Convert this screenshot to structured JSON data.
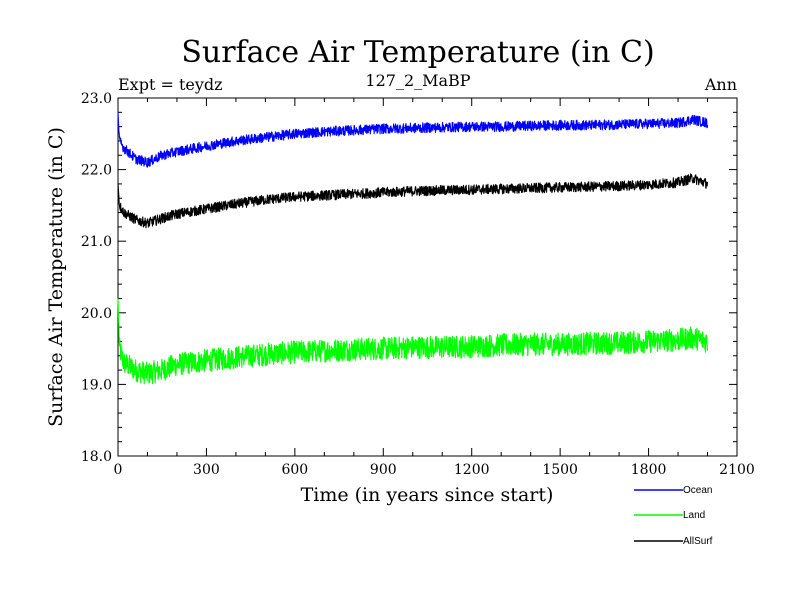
{
  "chart_data": {
    "type": "line",
    "title": "Surface Air Temperature (in C)",
    "subtitle": "127_2_MaBP",
    "left_label": "Expt = teydz",
    "right_label": "Ann",
    "xlabel": "Time (in years since start)",
    "ylabel": "Surface Air Temperature (in C)",
    "xlim": [
      0,
      2100
    ],
    "ylim": [
      18.0,
      23.0
    ],
    "x_ticks": [
      0,
      300,
      600,
      900,
      1200,
      1500,
      1800,
      2100
    ],
    "x_tick_labels": [
      "0",
      "300",
      "600",
      "900",
      "1200",
      "1500",
      "1800",
      "2100"
    ],
    "y_ticks": [
      18.0,
      19.0,
      20.0,
      21.0,
      22.0,
      23.0
    ],
    "y_tick_labels": [
      "18.0",
      "19.0",
      "20.0",
      "21.0",
      "22.0",
      "23.0"
    ],
    "grid": false,
    "legend_position": "bottom-right",
    "series": [
      {
        "name": "Ocean",
        "color": "#0000ff",
        "noise": 0.07,
        "x": [
          0,
          5,
          20,
          60,
          100,
          150,
          200,
          300,
          400,
          500,
          600,
          700,
          800,
          900,
          1000,
          1100,
          1200,
          1300,
          1400,
          1500,
          1600,
          1700,
          1800,
          1900,
          1950,
          2000
        ],
        "values": [
          22.8,
          22.4,
          22.3,
          22.15,
          22.1,
          22.2,
          22.25,
          22.33,
          22.4,
          22.45,
          22.5,
          22.53,
          22.55,
          22.57,
          22.58,
          22.59,
          22.6,
          22.6,
          22.61,
          22.62,
          22.62,
          22.63,
          22.64,
          22.65,
          22.7,
          22.65
        ]
      },
      {
        "name": "Land",
        "color": "#00ff00",
        "noise": 0.16,
        "x": [
          0,
          5,
          20,
          60,
          100,
          150,
          200,
          300,
          400,
          500,
          600,
          700,
          800,
          900,
          1000,
          1100,
          1200,
          1300,
          1400,
          1500,
          1600,
          1700,
          1800,
          1900,
          1950,
          2000
        ],
        "values": [
          20.2,
          19.5,
          19.3,
          19.2,
          19.15,
          19.2,
          19.28,
          19.33,
          19.38,
          19.42,
          19.45,
          19.47,
          19.49,
          19.5,
          19.52,
          19.52,
          19.53,
          19.55,
          19.56,
          19.56,
          19.57,
          19.58,
          19.6,
          19.62,
          19.65,
          19.6
        ]
      },
      {
        "name": "AllSurf",
        "color": "#000000",
        "noise": 0.07,
        "x": [
          0,
          5,
          20,
          60,
          100,
          150,
          200,
          300,
          400,
          500,
          600,
          700,
          800,
          900,
          1000,
          1100,
          1200,
          1300,
          1400,
          1500,
          1600,
          1700,
          1800,
          1900,
          1950,
          2000
        ],
        "values": [
          21.8,
          21.5,
          21.4,
          21.3,
          21.25,
          21.32,
          21.38,
          21.45,
          21.52,
          21.58,
          21.62,
          21.64,
          21.66,
          21.68,
          21.7,
          21.71,
          21.72,
          21.73,
          21.74,
          21.75,
          21.76,
          21.77,
          21.79,
          21.82,
          21.88,
          21.8
        ]
      }
    ]
  }
}
